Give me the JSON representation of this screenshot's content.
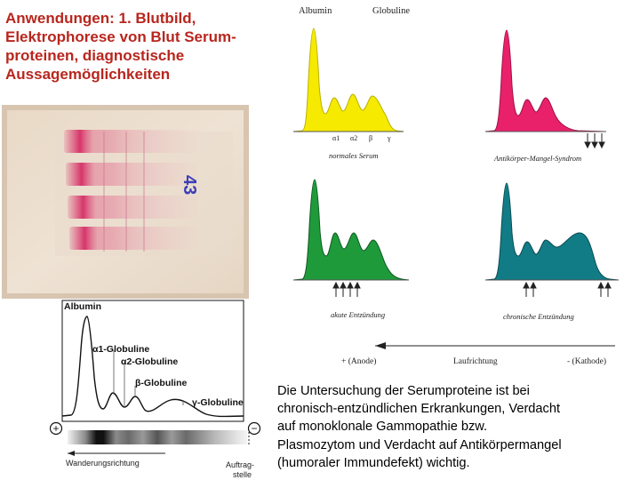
{
  "title": {
    "lines": [
      "Anwendungen: 1. Blutbild,",
      "Elektrophorese von Blut Serum-",
      "proteinen, diagnostische",
      "Aussagemöglichkeiten"
    ]
  },
  "right_diagram": {
    "header_albumin": "Albumin",
    "header_globuline": "Globuline",
    "greek_labels": [
      "α1",
      "α2",
      "β",
      "γ"
    ],
    "panels": [
      {
        "caption": "normales Serum",
        "color": "#f5ea00"
      },
      {
        "caption": "Antikörper-Mangel-Syndrom",
        "color": "#e9216a"
      },
      {
        "caption": "akute Entzündung",
        "color": "#1f9a3a"
      },
      {
        "caption": "chronische Entzündung",
        "color": "#117c86"
      }
    ],
    "anode_label": "+ (Anode)",
    "direction_label": "Laufrichtung",
    "cathode_label": "- (Kathode)"
  },
  "bottom_diagram": {
    "albumin": "Albumin",
    "alpha1": "α1-Globuline",
    "alpha2": "α2-Globuline",
    "beta": "β-Globuline",
    "gamma": "γ-Globuline",
    "plus": "+",
    "minus": "−",
    "wanderung": "Wanderungsrichtung",
    "auftrag_line1": "Auftrag-",
    "auftrag_line2": "stelle"
  },
  "body_text": {
    "lines": [
      "Die Untersuchung der Serumproteine ist bei",
      "chronisch-entzündlichen Erkrankungen, Verdacht",
      "auf monoklonale Gammopathie bzw.",
      "Plasmozytom und Verdacht auf Antikörpermangel",
      "(humoraler Immundefekt) wichtig."
    ]
  }
}
